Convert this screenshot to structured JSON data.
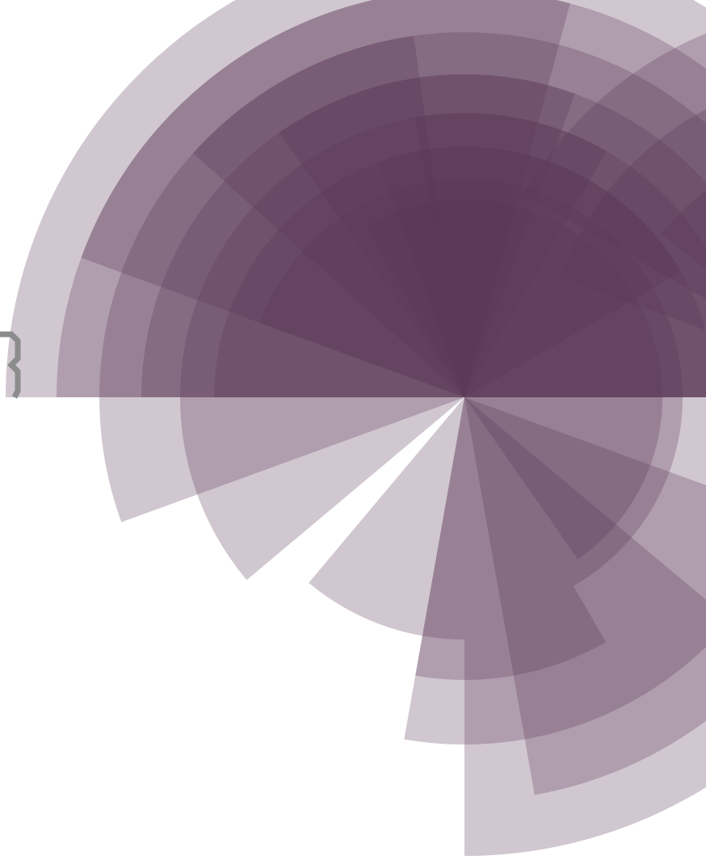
{
  "artwork": {
    "description_free": true,
    "colors": {
      "background": "#ffffff",
      "wedge_fill": "#5a3556",
      "wedge_opacity": 0.28,
      "glyph": "#8c8c8c"
    },
    "icon": "radial-fan-graphic"
  }
}
